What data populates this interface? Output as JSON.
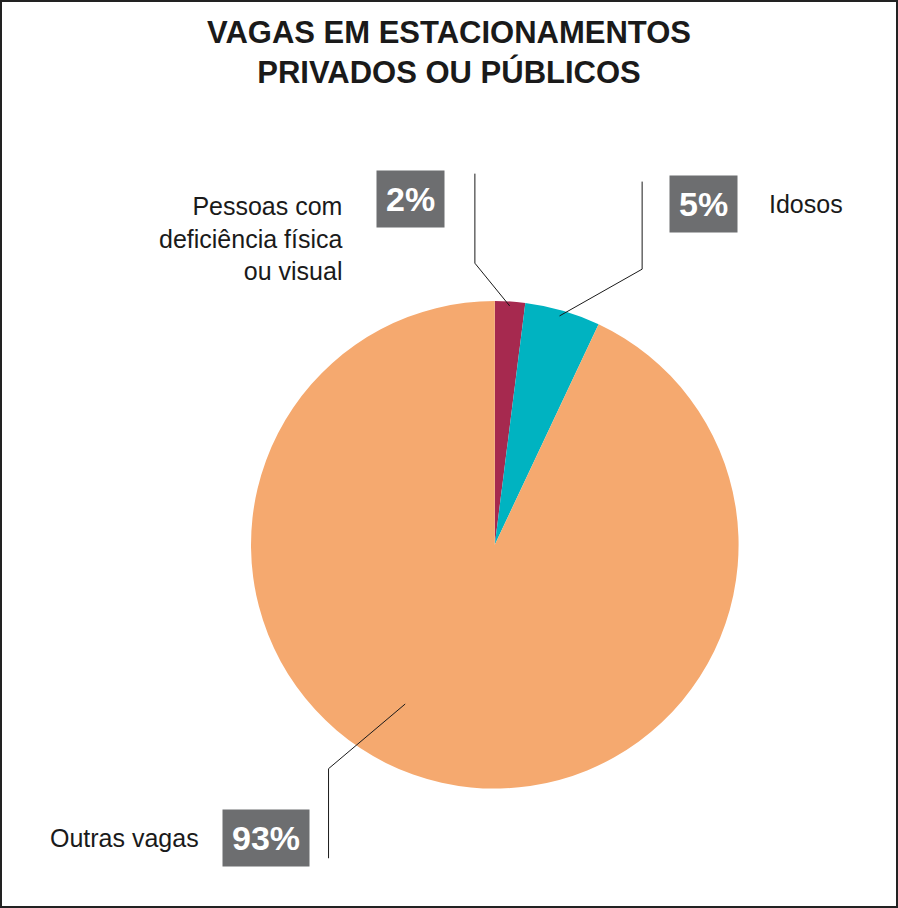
{
  "chart_data": {
    "type": "pie",
    "title": "VAGAS EM ESTACIONAMENTOS\nPRIVADOS OU PÚBLICOS",
    "categories": [
      "Pessoas com\ndeficiência física\nou visual",
      "Idosos",
      "Outras vagas"
    ],
    "values": [
      2,
      5,
      93
    ],
    "value_labels": [
      "2%",
      "5%",
      "93%"
    ],
    "colors": [
      "#a6294f",
      "#00b3c1",
      "#f5a96f"
    ],
    "data_labels": true
  }
}
